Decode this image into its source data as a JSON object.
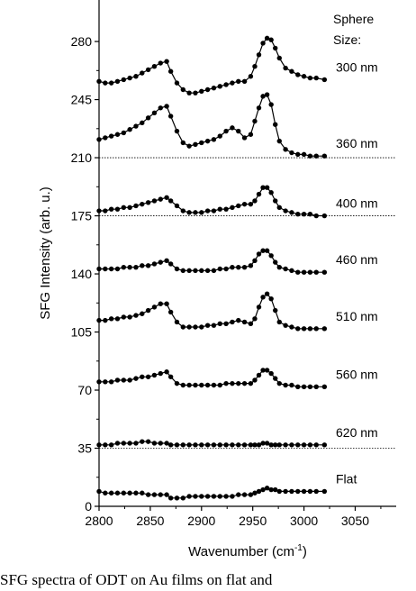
{
  "chart_data": {
    "type": "line",
    "xlabel": "Wavenumber (cm",
    "xlabel_sup": "-1",
    "xlabel_end": ")",
    "ylabel": "SFG Intensity (arb. u.)",
    "xlim": [
      2800,
      3090
    ],
    "ylim": [
      0,
      305
    ],
    "x_ticks": [
      2800,
      2850,
      2900,
      2950,
      3000,
      3050
    ],
    "y_ticks": [
      0,
      35,
      70,
      105,
      140,
      175,
      210,
      245,
      280
    ],
    "legend_title": [
      "Sphere",
      "Size:"
    ],
    "baselines": [
      35,
      175,
      210
    ],
    "x": [
      2800,
      2806,
      2812,
      2818,
      2824,
      2830,
      2836,
      2842,
      2848,
      2854,
      2860,
      2866,
      2870,
      2876,
      2882,
      2888,
      2894,
      2900,
      2906,
      2912,
      2918,
      2924,
      2930,
      2936,
      2942,
      2948,
      2952,
      2956,
      2960,
      2964,
      2968,
      2972,
      2976,
      2982,
      2988,
      2994,
      3000,
      3006,
      3012,
      3020
    ],
    "series": [
      {
        "name": "300 nm",
        "values": [
          256,
          255,
          255,
          256,
          257,
          258,
          259,
          261,
          263,
          265,
          267,
          268,
          262,
          255,
          251,
          249,
          249,
          250,
          251,
          252,
          253,
          254,
          255,
          256,
          256,
          259,
          265,
          272,
          279,
          282,
          281,
          276,
          270,
          264,
          262,
          260,
          259,
          258,
          258,
          257
        ]
      },
      {
        "name": "360 nm",
        "values": [
          221,
          222,
          223,
          224,
          225,
          227,
          229,
          231,
          234,
          237,
          240,
          241,
          235,
          226,
          219,
          217,
          218,
          219,
          220,
          221,
          223,
          226,
          228,
          226,
          222,
          224,
          232,
          240,
          247,
          248,
          242,
          230,
          220,
          215,
          213,
          212,
          212,
          211,
          211,
          211
        ]
      },
      {
        "name": "400 nm",
        "values": [
          178,
          178,
          179,
          179,
          180,
          180,
          181,
          182,
          183,
          184,
          185,
          186,
          184,
          181,
          178,
          177,
          177,
          177,
          178,
          178,
          179,
          179,
          180,
          181,
          182,
          182,
          184,
          188,
          192,
          192,
          189,
          184,
          180,
          178,
          177,
          176,
          176,
          176,
          175,
          175
        ]
      },
      {
        "name": "460 nm",
        "values": [
          143,
          143,
          143,
          143,
          144,
          144,
          144,
          145,
          145,
          146,
          147,
          148,
          146,
          143,
          142,
          142,
          142,
          142,
          142,
          142,
          143,
          143,
          144,
          144,
          144,
          145,
          148,
          152,
          154,
          154,
          151,
          147,
          144,
          143,
          142,
          141,
          141,
          141,
          141,
          141
        ]
      },
      {
        "name": "510 nm",
        "values": [
          112,
          112,
          113,
          113,
          114,
          114,
          115,
          116,
          118,
          120,
          122,
          122,
          117,
          111,
          108,
          108,
          108,
          108,
          109,
          109,
          110,
          110,
          111,
          112,
          111,
          110,
          113,
          120,
          126,
          128,
          125,
          118,
          111,
          109,
          108,
          107,
          107,
          107,
          107,
          107
        ]
      },
      {
        "name": "560 nm",
        "values": [
          75,
          75,
          75,
          76,
          76,
          76,
          77,
          78,
          78,
          79,
          80,
          81,
          78,
          74,
          73,
          73,
          73,
          73,
          73,
          73,
          73,
          74,
          74,
          74,
          74,
          74,
          76,
          79,
          82,
          82,
          80,
          77,
          74,
          73,
          73,
          72,
          72,
          72,
          72,
          72
        ]
      },
      {
        "name": "620 nm",
        "values": [
          37,
          37,
          37,
          38,
          38,
          38,
          38,
          39,
          39,
          38,
          38,
          38,
          37,
          37,
          37,
          37,
          37,
          37,
          37,
          37,
          37,
          37,
          37,
          37,
          37,
          37,
          37,
          37,
          38,
          38,
          37,
          37,
          37,
          37,
          37,
          37,
          37,
          37,
          37,
          37
        ]
      },
      {
        "name": "Flat",
        "values": [
          9,
          8,
          8,
          8,
          8,
          8,
          8,
          8,
          7,
          7,
          7,
          7,
          5,
          5,
          5,
          6,
          6,
          6,
          6,
          6,
          6,
          6,
          6,
          7,
          7,
          7,
          8,
          9,
          10,
          11,
          10,
          10,
          9,
          9,
          9,
          9,
          9,
          9,
          9,
          9
        ]
      }
    ],
    "grid": false,
    "legend": "right"
  },
  "caption": "SFG spectra of ODT on Au films on flat and"
}
